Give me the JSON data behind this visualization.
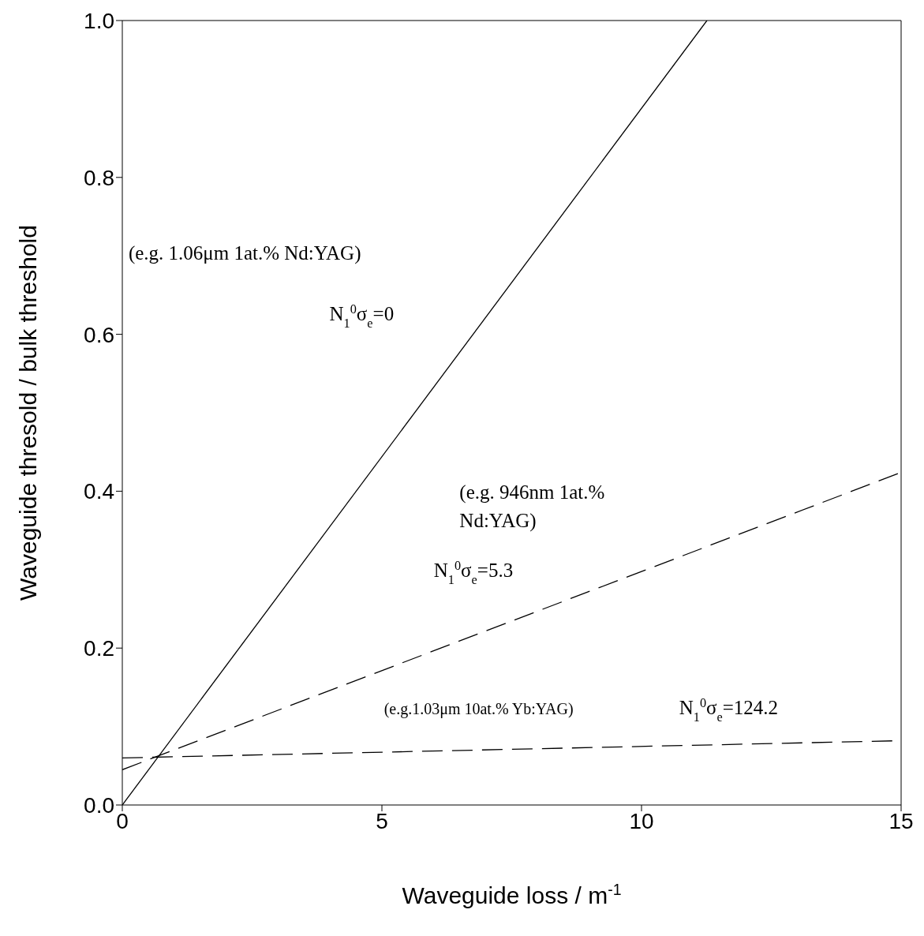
{
  "chart_data": {
    "type": "line",
    "xlabel": "Waveguide loss / m$^{-1}$",
    "ylabel": "Waveguide thresold / bulk threshold",
    "xlim": [
      0,
      15
    ],
    "xticks": [
      0,
      5,
      10,
      15
    ],
    "ylim": [
      0,
      1
    ],
    "yticks": [
      {
        "value": 0,
        "label": "0.0"
      },
      {
        "value": 0.2,
        "label": "0.2"
      },
      {
        "value": 0.4,
        "label": "0.4"
      },
      {
        "value": 0.6,
        "label": "0.6"
      },
      {
        "value": 0.8,
        "label": "0.8"
      },
      {
        "value": 1,
        "label": "1.0"
      }
    ],
    "grid": false,
    "legend": false,
    "marker": "none",
    "series": [
      {
        "color": "#000000",
        "line_style": "solid",
        "x": [
          0,
          11.26
        ],
        "values": [
          0,
          1
        ]
      },
      {
        "color": "#000000",
        "line_style": "dashed",
        "x": [
          0,
          15
        ],
        "values": [
          0.045,
          0.424
        ]
      },
      {
        "color": "#000000",
        "line_style": "dashed",
        "x": [
          0,
          15
        ],
        "values": [
          0.06,
          0.082
        ]
      }
    ],
    "annotations": [
      "(e.g. 1.06μm 1at.% Nd:YAG)",
      "N$_{1}$$^{0}$σ$_{e}$=0",
      "(e.g. 946nm 1at.%",
      "Nd:YAG)",
      "N$_{1}$$^{0}$σ$_{e}$=5.3",
      "(e.g.1.03μm 10at.% Yb:YAG)",
      "N$_{1}$$^{0}$σ$_{e}$=124.2"
    ]
  }
}
